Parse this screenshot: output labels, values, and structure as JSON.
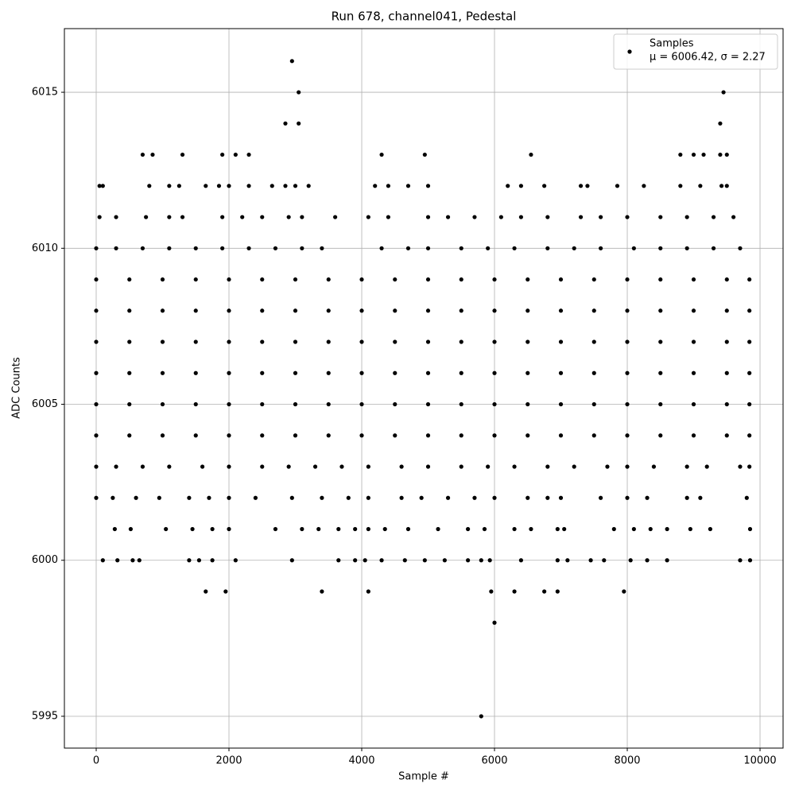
{
  "chart_data": {
    "type": "scatter",
    "title": "Run 678, channel041, Pedestal",
    "x_label": "Sample #",
    "y_label": "ADC Counts",
    "xlim": [
      -479,
      10347
    ],
    "ylim": [
      5993.98,
      6017.04
    ],
    "xticks": [
      0,
      2000,
      4000,
      6000,
      8000,
      10000
    ],
    "yticks": [
      5995,
      6000,
      6005,
      6010,
      6015
    ],
    "grid": true,
    "legend": "upper right",
    "legend_note": "μ = 6006.42, σ = 2.27",
    "series": [
      {
        "name": "Samples",
        "color": "#000000",
        "x": [
          0,
          500,
          1000,
          1500,
          2000,
          2500,
          3000,
          3500,
          4000,
          4500,
          5000,
          5500,
          6000,
          6500,
          7000,
          7500,
          8000,
          8500,
          9000,
          9500,
          9840,
          0,
          500,
          1000,
          1500,
          2000,
          2500,
          3000,
          3500,
          4000,
          4500,
          5000,
          5500,
          6000,
          6500,
          7000,
          7500,
          8000,
          8500,
          9000,
          9500,
          9840,
          0,
          500,
          1000,
          1500,
          2000,
          2500,
          3000,
          3500,
          4000,
          4500,
          5000,
          5500,
          6000,
          6500,
          7000,
          7500,
          8000,
          8500,
          9000,
          9500,
          9840,
          0,
          500,
          1000,
          1500,
          2000,
          2500,
          3000,
          3500,
          4000,
          4500,
          5000,
          5500,
          6000,
          6500,
          7000,
          7500,
          8000,
          8500,
          9000,
          9500,
          9840,
          0,
          500,
          1000,
          1500,
          2000,
          2500,
          3000,
          3500,
          4000,
          4500,
          5000,
          5500,
          6000,
          6500,
          7000,
          7500,
          8000,
          8500,
          9000,
          9500,
          9840,
          0,
          500,
          1000,
          1500,
          2000,
          2500,
          3000,
          3500,
          4000,
          4500,
          5000,
          5500,
          6000,
          6500,
          7000,
          7500,
          8000,
          8500,
          9000,
          9500,
          9840,
          0,
          300,
          700,
          1100,
          1500,
          1900,
          2300,
          2700,
          3100,
          3400,
          4300,
          4700,
          5000,
          5500,
          5900,
          6300,
          6800,
          7200,
          7600,
          8100,
          8500,
          8900,
          9300,
          9700,
          0,
          300,
          700,
          1100,
          1600,
          2000,
          2500,
          2900,
          3300,
          3700,
          4100,
          4600,
          5000,
          5500,
          5900,
          6300,
          6800,
          7200,
          7700,
          8000,
          8400,
          8900,
          9200,
          9700,
          9840,
          50,
          300,
          750,
          1100,
          1300,
          1900,
          2200,
          2500,
          2900,
          3100,
          3600,
          4100,
          4400,
          5000,
          5300,
          5700,
          6100,
          6400,
          6800,
          7300,
          7600,
          8000,
          8500,
          8900,
          9300,
          9600,
          0,
          250,
          600,
          950,
          1400,
          1700,
          2000,
          2400,
          2950,
          3400,
          3800,
          4100,
          4600,
          4900,
          5300,
          5700,
          6000,
          6500,
          6800,
          7000,
          7600,
          8000,
          8300,
          8900,
          9100,
          9800,
          50,
          100,
          800,
          1100,
          1250,
          1650,
          1850,
          2000,
          2300,
          2650,
          2850,
          3000,
          3200,
          4200,
          4400,
          4700,
          5000,
          6200,
          6400,
          6750,
          7300,
          7400,
          7850,
          8250,
          8800,
          9100,
          9420,
          9500,
          280,
          520,
          1050,
          1450,
          1750,
          2000,
          2700,
          3100,
          3350,
          3650,
          3900,
          4100,
          4350,
          4700,
          5150,
          5600,
          5850,
          6300,
          6550,
          6950,
          7050,
          7800,
          8100,
          8350,
          8600,
          8950,
          9250,
          9850,
          100,
          320,
          550,
          650,
          1400,
          1550,
          1750,
          2100,
          2950,
          3650,
          3900,
          4050,
          4300,
          4650,
          4950,
          5250,
          5600,
          5800,
          5930,
          6400,
          6950,
          7100,
          7450,
          7650,
          8050,
          8300,
          8600,
          9700,
          9850,
          700,
          850,
          1300,
          1900,
          2100,
          2300,
          4300,
          4950,
          6550,
          8800,
          9000,
          9150,
          9400,
          9500,
          1650,
          1950,
          3400,
          4100,
          5950,
          6300,
          6750,
          6950,
          7950,
          6000,
          5800,
          2850,
          3050,
          9400,
          3050,
          9450,
          2950
        ],
        "values": [
          6004,
          6004,
          6004,
          6004,
          6004,
          6004,
          6004,
          6004,
          6004,
          6004,
          6004,
          6004,
          6004,
          6004,
          6004,
          6004,
          6004,
          6004,
          6004,
          6004,
          6004,
          6005,
          6005,
          6005,
          6005,
          6005,
          6005,
          6005,
          6005,
          6005,
          6005,
          6005,
          6005,
          6005,
          6005,
          6005,
          6005,
          6005,
          6005,
          6005,
          6005,
          6005,
          6006,
          6006,
          6006,
          6006,
          6006,
          6006,
          6006,
          6006,
          6006,
          6006,
          6006,
          6006,
          6006,
          6006,
          6006,
          6006,
          6006,
          6006,
          6006,
          6006,
          6006,
          6007,
          6007,
          6007,
          6007,
          6007,
          6007,
          6007,
          6007,
          6007,
          6007,
          6007,
          6007,
          6007,
          6007,
          6007,
          6007,
          6007,
          6007,
          6007,
          6007,
          6007,
          6008,
          6008,
          6008,
          6008,
          6008,
          6008,
          6008,
          6008,
          6008,
          6008,
          6008,
          6008,
          6008,
          6008,
          6008,
          6008,
          6008,
          6008,
          6008,
          6008,
          6008,
          6009,
          6009,
          6009,
          6009,
          6009,
          6009,
          6009,
          6009,
          6009,
          6009,
          6009,
          6009,
          6009,
          6009,
          6009,
          6009,
          6009,
          6009,
          6009,
          6009,
          6009,
          6010,
          6010,
          6010,
          6010,
          6010,
          6010,
          6010,
          6010,
          6010,
          6010,
          6010,
          6010,
          6010,
          6010,
          6010,
          6010,
          6010,
          6010,
          6010,
          6010,
          6010,
          6010,
          6010,
          6010,
          6003,
          6003,
          6003,
          6003,
          6003,
          6003,
          6003,
          6003,
          6003,
          6003,
          6003,
          6003,
          6003,
          6003,
          6003,
          6003,
          6003,
          6003,
          6003,
          6003,
          6003,
          6003,
          6003,
          6003,
          6003,
          6011,
          6011,
          6011,
          6011,
          6011,
          6011,
          6011,
          6011,
          6011,
          6011,
          6011,
          6011,
          6011,
          6011,
          6011,
          6011,
          6011,
          6011,
          6011,
          6011,
          6011,
          6011,
          6011,
          6011,
          6011,
          6011,
          6002,
          6002,
          6002,
          6002,
          6002,
          6002,
          6002,
          6002,
          6002,
          6002,
          6002,
          6002,
          6002,
          6002,
          6002,
          6002,
          6002,
          6002,
          6002,
          6002,
          6002,
          6002,
          6002,
          6002,
          6002,
          6002,
          6012,
          6012,
          6012,
          6012,
          6012,
          6012,
          6012,
          6012,
          6012,
          6012,
          6012,
          6012,
          6012,
          6012,
          6012,
          6012,
          6012,
          6012,
          6012,
          6012,
          6012,
          6012,
          6012,
          6012,
          6012,
          6012,
          6012,
          6012,
          6001,
          6001,
          6001,
          6001,
          6001,
          6001,
          6001,
          6001,
          6001,
          6001,
          6001,
          6001,
          6001,
          6001,
          6001,
          6001,
          6001,
          6001,
          6001,
          6001,
          6001,
          6001,
          6001,
          6001,
          6001,
          6001,
          6001,
          6001,
          6000,
          6000,
          6000,
          6000,
          6000,
          6000,
          6000,
          6000,
          6000,
          6000,
          6000,
          6000,
          6000,
          6000,
          6000,
          6000,
          6000,
          6000,
          6000,
          6000,
          6000,
          6000,
          6000,
          6000,
          6000,
          6000,
          6000,
          6000,
          6000,
          6013,
          6013,
          6013,
          6013,
          6013,
          6013,
          6013,
          6013,
          6013,
          6013,
          6013,
          6013,
          6013,
          6013,
          5999,
          5999,
          5999,
          5999,
          5999,
          5999,
          5999,
          5999,
          5999,
          5998,
          5995,
          6014,
          6014,
          6014,
          6015,
          6015,
          6016
        ]
      }
    ]
  }
}
